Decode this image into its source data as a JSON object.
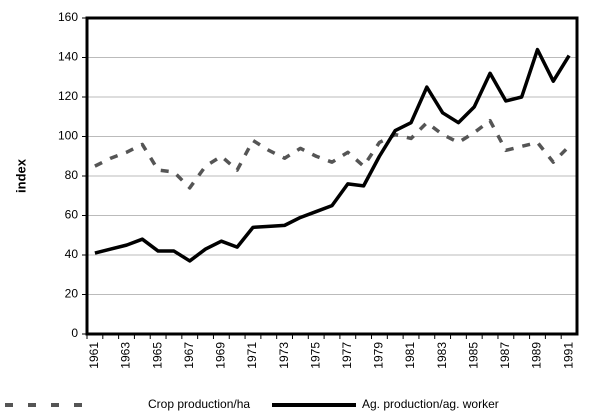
{
  "chart_data": {
    "type": "line",
    "ylabel": "index",
    "categories": [
      "1961",
      null,
      "1963",
      null,
      "1965",
      null,
      "1967",
      null,
      "1969",
      null,
      "1971",
      null,
      "1973",
      null,
      "1975",
      null,
      "1977",
      null,
      "1979",
      null,
      "1981",
      null,
      "1983",
      null,
      "1985",
      null,
      "1987",
      null,
      "1989",
      null,
      "1991"
    ],
    "series": [
      {
        "name": "Crop production/ha",
        "color": "#555555",
        "dash": true,
        "values": [
          85,
          89,
          92,
          96,
          83,
          82,
          74,
          85,
          90,
          83,
          98,
          93,
          89,
          94,
          90,
          87,
          92,
          85,
          97,
          101,
          99,
          107,
          101,
          97,
          102,
          108,
          93,
          95,
          97,
          87,
          95
        ]
      },
      {
        "name": "Ag. production/ag. worker",
        "color": "#000000",
        "dash": false,
        "values": [
          41,
          43,
          45,
          48,
          42,
          42,
          37,
          43,
          47,
          44,
          54,
          54.5,
          55,
          59,
          62,
          65,
          76,
          75,
          90,
          103,
          107,
          125,
          112,
          107,
          115,
          132,
          118,
          120,
          144,
          128,
          141
        ]
      }
    ],
    "ylim": [
      0,
      160
    ],
    "yticks": [
      0,
      20,
      40,
      60,
      80,
      100,
      120,
      140,
      160
    ],
    "grid": true,
    "legend": "bottom"
  }
}
